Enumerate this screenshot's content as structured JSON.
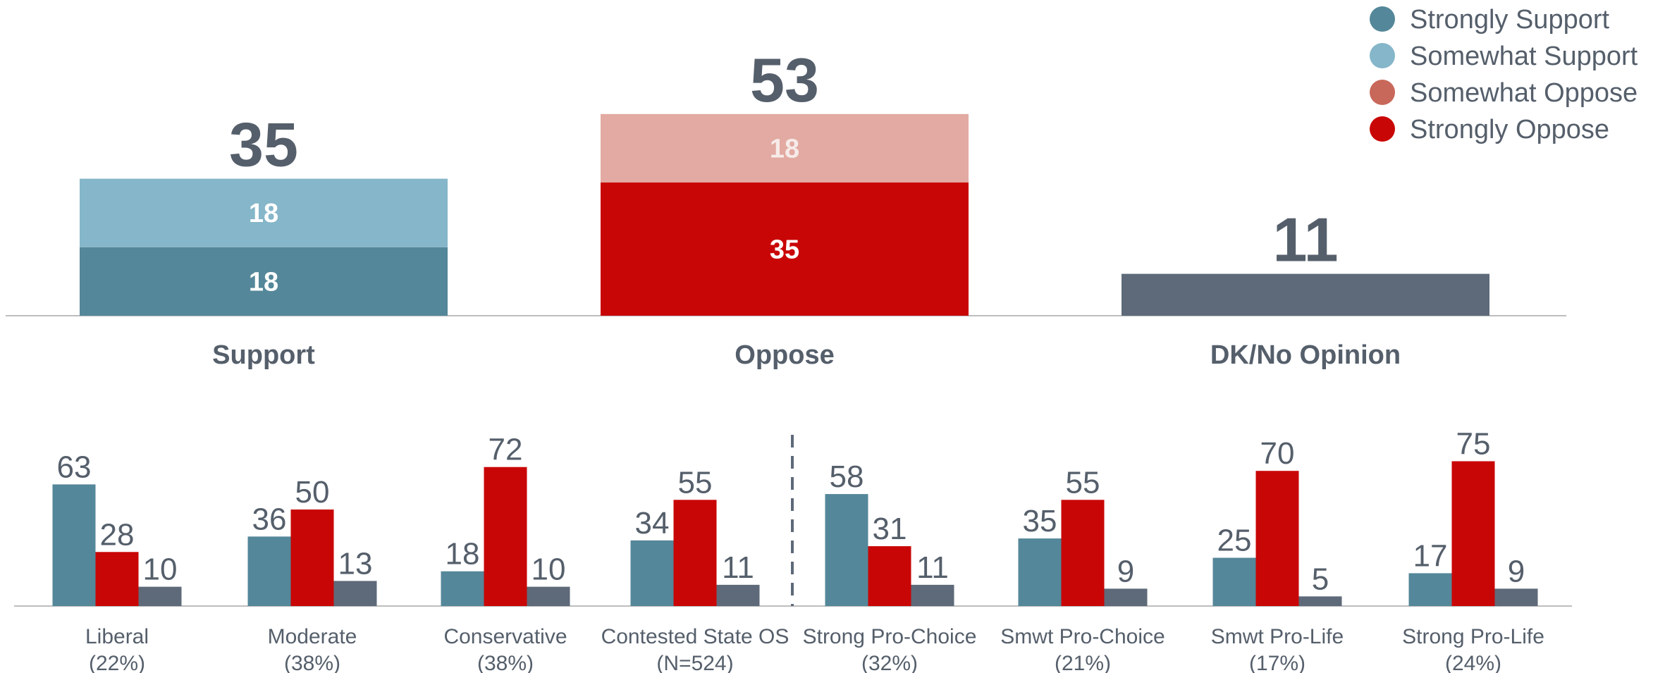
{
  "colors": {
    "strongly_support": "#548799",
    "somewhat_support": "#85b6c9",
    "somewhat_oppose": "#e2aaa2",
    "strongly_oppose": "#c90606",
    "dk": "#5e6a79",
    "text": "#555f6b",
    "legend_somewhat_oppose": "#c8685a",
    "axis": "#bdbdbd"
  },
  "legend": [
    {
      "label": "Strongly Support",
      "color_key": "strongly_support"
    },
    {
      "label": "Somewhat Support",
      "color_key": "somewhat_support"
    },
    {
      "label": "Somewhat Oppose",
      "color_key": "legend_somewhat_oppose"
    },
    {
      "label": "Strongly Oppose",
      "color_key": "strongly_oppose"
    }
  ],
  "chart_data": [
    {
      "type": "bar",
      "stacked": true,
      "categories": [
        "Support",
        "Oppose",
        "DK/No Opinion"
      ],
      "totals": [
        35,
        53,
        11
      ],
      "series": [
        {
          "name": "Strongly Support",
          "values": [
            18,
            null,
            null
          ]
        },
        {
          "name": "Somewhat Support",
          "values": [
            18,
            null,
            null
          ]
        },
        {
          "name": "Strongly Oppose",
          "values": [
            null,
            35,
            null
          ]
        },
        {
          "name": "Somewhat Oppose",
          "values": [
            null,
            18,
            null
          ]
        },
        {
          "values": [
            null,
            null,
            11
          ]
        }
      ]
    },
    {
      "type": "bar",
      "groups": [
        {
          "label": "Liberal",
          "sublabel": "(22%)",
          "values": [
            63,
            28,
            10
          ]
        },
        {
          "label": "Moderate",
          "sublabel": "(38%)",
          "values": [
            36,
            50,
            13
          ]
        },
        {
          "label": "Conservative",
          "sublabel": "(38%)",
          "values": [
            18,
            72,
            10
          ]
        },
        {
          "label": "Contested State OS",
          "sublabel": "(N=524)",
          "values": [
            34,
            55,
            11
          ]
        },
        {
          "label": "Strong Pro-Choice",
          "sublabel": "(32%)",
          "values": [
            58,
            31,
            11
          ]
        },
        {
          "label": "Smwt Pro-Choice",
          "sublabel": "(21%)",
          "values": [
            35,
            55,
            9
          ]
        },
        {
          "label": "Smwt Pro-Life",
          "sublabel": "(17%)",
          "values": [
            25,
            70,
            5
          ]
        },
        {
          "label": "Strong Pro-Life",
          "sublabel": "(24%)",
          "values": [
            17,
            75,
            9
          ]
        }
      ],
      "divider_after_group": 3
    }
  ]
}
